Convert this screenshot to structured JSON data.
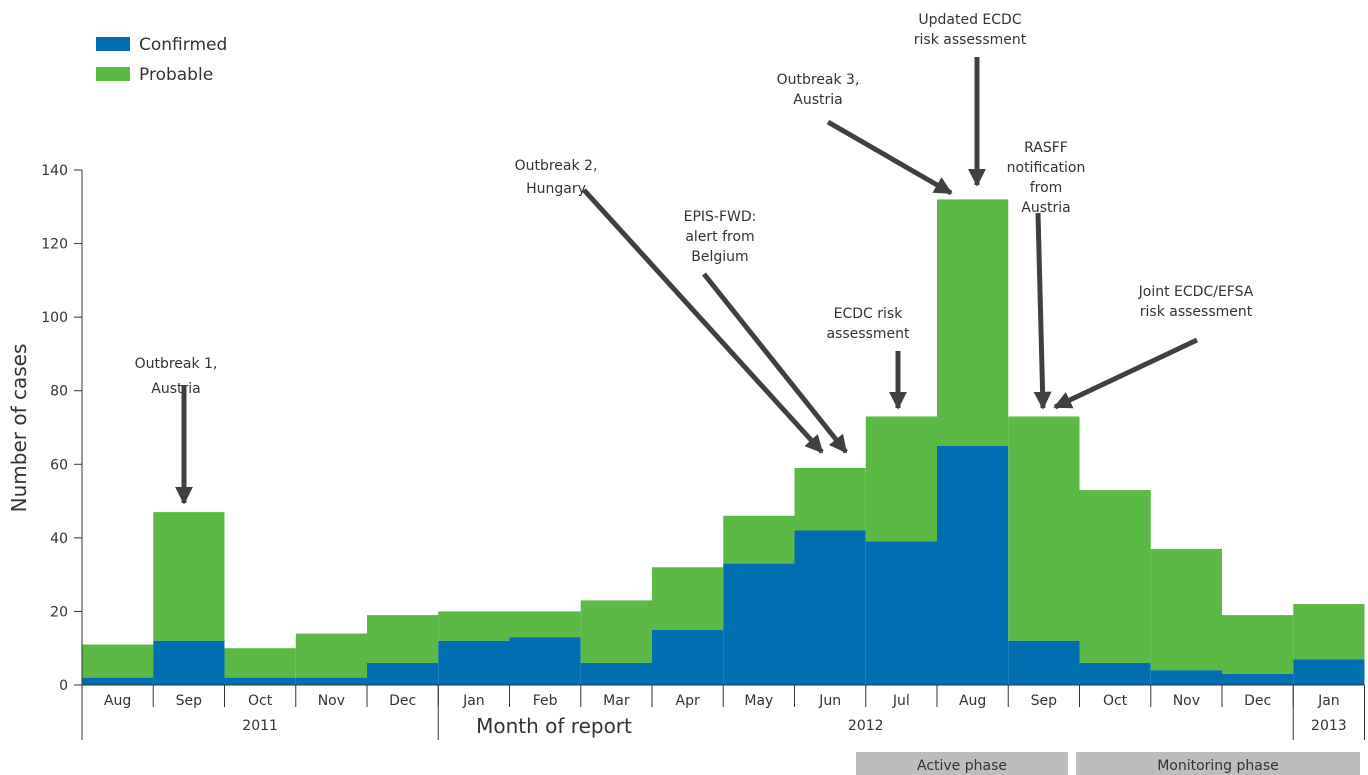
{
  "chart_data": {
    "type": "bar",
    "stacked": true,
    "categories": [
      "Aug",
      "Sep",
      "Oct",
      "Nov",
      "Dec",
      "Jan",
      "Feb",
      "Mar",
      "Apr",
      "May",
      "Jun",
      "Jul",
      "Aug",
      "Sep",
      "Oct",
      "Nov",
      "Dec",
      "Jan"
    ],
    "years": [
      {
        "label": "2011",
        "from": 0,
        "to": 4
      },
      {
        "label": "2012",
        "from": 5,
        "to": 16
      },
      {
        "label": "2013",
        "from": 17,
        "to": 17
      }
    ],
    "series": [
      {
        "name": "Confirmed",
        "color": "#006eb0",
        "values": [
          2,
          12,
          2,
          2,
          6,
          12,
          13,
          6,
          15,
          33,
          42,
          39,
          65,
          12,
          6,
          4,
          3,
          7
        ]
      },
      {
        "name": "Probable",
        "color": "#5cb946",
        "values": [
          9,
          35,
          8,
          12,
          13,
          8,
          7,
          17,
          17,
          13,
          17,
          34,
          67,
          61,
          47,
          33,
          16,
          15
        ]
      }
    ],
    "ylim": [
      0,
      140
    ],
    "yticks": [
      0,
      20,
      40,
      60,
      80,
      100,
      120,
      140
    ],
    "xlabel": "Month of report",
    "ylabel": "Number of cases",
    "legend_position": "top-left",
    "grid": false,
    "phases": [
      {
        "label": "Active phase",
        "from": 11,
        "to": 13
      },
      {
        "label": "Monitoring phase",
        "from": 14,
        "to": 17
      }
    ],
    "annotations": [
      {
        "lines": [
          "Outbreak 1,",
          "Austria"
        ],
        "target_month": 1
      },
      {
        "lines": [
          "Outbreak 2,",
          "Hungary"
        ],
        "target_month": 10
      },
      {
        "lines": [
          "EPIS-FWD:",
          "alert from",
          "Belgium"
        ],
        "target_month": 10
      },
      {
        "lines": [
          "ECDC risk",
          "assessment"
        ],
        "target_month": 11
      },
      {
        "lines": [
          "Outbreak 3,",
          "Austria"
        ],
        "target_month": 12
      },
      {
        "lines": [
          "Updated ECDC",
          "risk assessment"
        ],
        "target_month": 12
      },
      {
        "lines": [
          "RASFF",
          "notification",
          "from",
          "Austria"
        ],
        "target_month": 13
      },
      {
        "lines": [
          "Joint ECDC/EFSA",
          "risk assessment"
        ],
        "target_month": 13
      }
    ],
    "colors": {
      "arrow": "#404040",
      "phase_band": "#bdbdbd",
      "axis": "#333333"
    }
  }
}
